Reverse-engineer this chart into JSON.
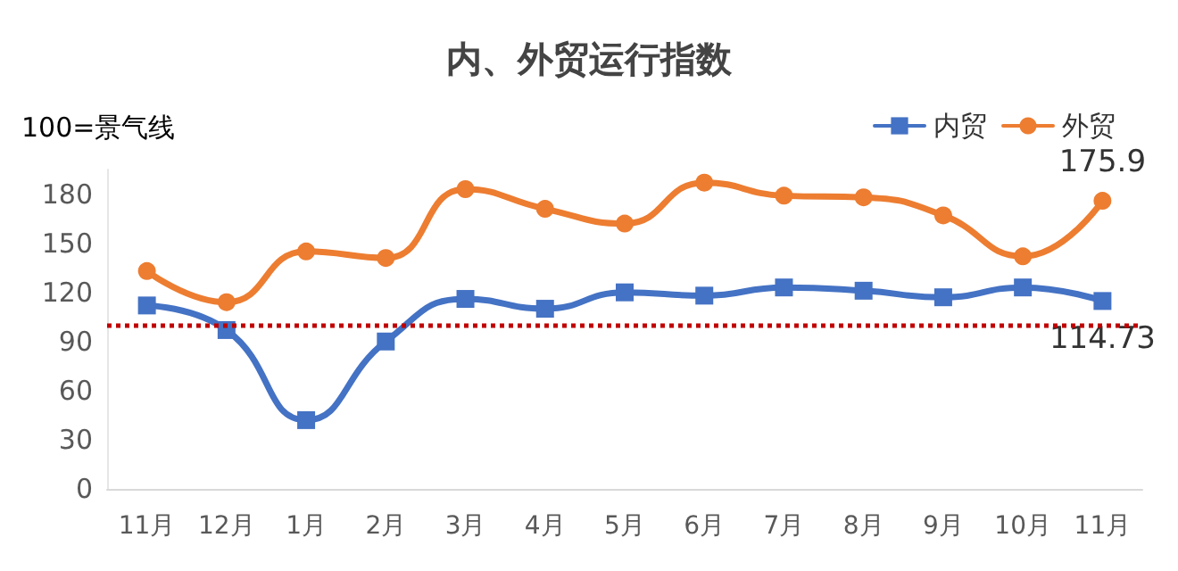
{
  "chart_data": {
    "type": "line",
    "title": "内、外贸运行指数",
    "annotations": [
      "100=景气线"
    ],
    "categories": [
      "11月",
      "12月",
      "1月",
      "2月",
      "3月",
      "4月",
      "5月",
      "6月",
      "7月",
      "8月",
      "9月",
      "10月",
      "11月"
    ],
    "series": [
      {
        "name": "内贸",
        "color": "#4472c4",
        "marker": "square",
        "values": [
          112,
          97,
          42,
          90,
          116,
          110,
          120,
          118,
          123,
          121,
          117,
          123,
          114.73
        ],
        "value_labels": [
          null,
          null,
          null,
          null,
          null,
          null,
          null,
          null,
          null,
          null,
          null,
          null,
          "114.73"
        ]
      },
      {
        "name": "外贸",
        "color": "#ed7d31",
        "marker": "circle",
        "values": [
          133,
          114,
          145,
          141,
          183,
          171,
          162,
          187,
          179,
          178,
          167,
          142,
          175.9
        ],
        "value_labels": [
          null,
          null,
          null,
          null,
          null,
          null,
          null,
          null,
          null,
          null,
          null,
          null,
          "175.9"
        ]
      }
    ],
    "ylim": [
      0,
      195
    ],
    "yticks": [
      0,
      30,
      60,
      90,
      120,
      150,
      180
    ],
    "grid": false,
    "legend": "top right",
    "line_style": "solid",
    "ref_lines": [
      {
        "axis": "y",
        "value": 100,
        "color": "#c00000",
        "line_style": "dotted"
      }
    ]
  }
}
